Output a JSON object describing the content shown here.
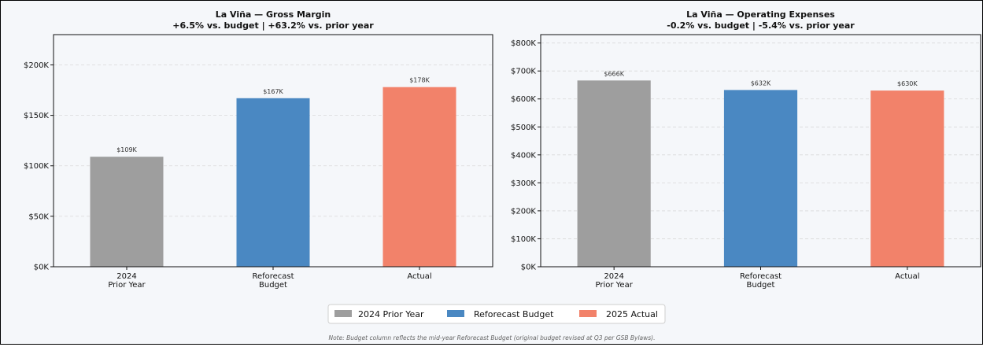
{
  "chart_data": [
    {
      "type": "bar",
      "title": "La Viña — Gross Margin",
      "subtitle": "+6.5% vs. budget  |  +63.2% vs. prior year",
      "categories": [
        "2024\nPrior Year",
        "Reforecast\nBudget",
        "Actual"
      ],
      "values": [
        109,
        167,
        178
      ],
      "value_labels": [
        "$109K",
        "$167K",
        "$178K"
      ],
      "colors": [
        "#9e9e9e",
        "#4a88c2",
        "#f2826a"
      ],
      "yticks": [
        0,
        50,
        100,
        150,
        200
      ],
      "ytick_labels": [
        "$0K",
        "$50K",
        "$100K",
        "$150K",
        "$200K"
      ],
      "ylim": [
        0,
        230
      ],
      "grid": true
    },
    {
      "type": "bar",
      "title": "La Viña — Operating Expenses",
      "subtitle": "-0.2% vs. budget  |  -5.4% vs. prior year",
      "categories": [
        "2024\nPrior Year",
        "Reforecast\nBudget",
        "Actual"
      ],
      "values": [
        666,
        632,
        630
      ],
      "value_labels": [
        "$666K",
        "$632K",
        "$630K"
      ],
      "colors": [
        "#9e9e9e",
        "#4a88c2",
        "#f2826a"
      ],
      "yticks": [
        0,
        100,
        200,
        300,
        400,
        500,
        600,
        700,
        800
      ],
      "ytick_labels": [
        "$0K",
        "$100K",
        "$200K",
        "$300K",
        "$400K",
        "$500K",
        "$600K",
        "$700K",
        "$800K"
      ],
      "ylim": [
        0,
        830
      ],
      "grid": true
    }
  ],
  "legend": {
    "placement": "bottom-center",
    "items": [
      {
        "label": "2024 Prior Year",
        "color": "#9e9e9e"
      },
      {
        "label": "Reforecast Budget",
        "color": "#4a88c2"
      },
      {
        "label": "2025 Actual",
        "color": "#f2826a"
      }
    ]
  },
  "note": "Note: Budget column reflects the mid-year Reforecast Budget (original budget revised at Q3 per GSB Bylaws)."
}
